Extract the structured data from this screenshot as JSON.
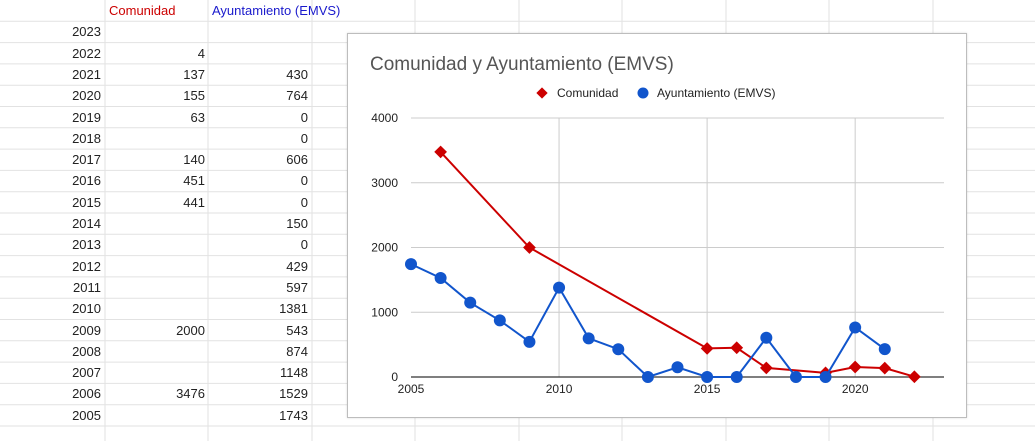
{
  "sheet": {
    "header_a": "Comunidad",
    "header_b": "Ayuntamiento (EMVS)",
    "colors": {
      "header_a": "#cc0000",
      "header_b": "#1a1acc"
    },
    "rows": [
      {
        "year": "2023",
        "a": "",
        "b": ""
      },
      {
        "year": "2022",
        "a": "4",
        "b": ""
      },
      {
        "year": "2021",
        "a": "137",
        "b": "430"
      },
      {
        "year": "2020",
        "a": "155",
        "b": "764"
      },
      {
        "year": "2019",
        "a": "63",
        "b": "0"
      },
      {
        "year": "2018",
        "a": "",
        "b": "0"
      },
      {
        "year": "2017",
        "a": "140",
        "b": "606"
      },
      {
        "year": "2016",
        "a": "451",
        "b": "0"
      },
      {
        "year": "2015",
        "a": "441",
        "b": "0"
      },
      {
        "year": "2014",
        "a": "",
        "b": "150"
      },
      {
        "year": "2013",
        "a": "",
        "b": "0"
      },
      {
        "year": "2012",
        "a": "",
        "b": "429"
      },
      {
        "year": "2011",
        "a": "",
        "b": "597"
      },
      {
        "year": "2010",
        "a": "",
        "b": "1381"
      },
      {
        "year": "2009",
        "a": "2000",
        "b": "543"
      },
      {
        "year": "2008",
        "a": "",
        "b": "874"
      },
      {
        "year": "2007",
        "a": "",
        "b": "1148"
      },
      {
        "year": "2006",
        "a": "3476",
        "b": "1529"
      },
      {
        "year": "2005",
        "a": "",
        "b": "1743"
      }
    ]
  },
  "chart_data": {
    "type": "line",
    "title": "Comunidad y Ayuntamiento (EMVS)",
    "xlabel": "",
    "ylabel": "",
    "xlim": [
      2005,
      2023
    ],
    "ylim": [
      0,
      4000
    ],
    "x_ticks": [
      "2005",
      "2010",
      "2015",
      "2020"
    ],
    "y_ticks": [
      "0",
      "1000",
      "2000",
      "3000",
      "4000"
    ],
    "grid": true,
    "legend_position": "top",
    "series": [
      {
        "name": "Comunidad",
        "color": "#cc0000",
        "marker": "diamond",
        "x": [
          2006,
          2009,
          2015,
          2016,
          2017,
          2019,
          2020,
          2021,
          2022
        ],
        "y": [
          3476,
          2000,
          441,
          451,
          140,
          63,
          155,
          137,
          4
        ]
      },
      {
        "name": "Ayuntamiento (EMVS)",
        "color": "#1155cc",
        "marker": "circle",
        "x": [
          2005,
          2006,
          2007,
          2008,
          2009,
          2010,
          2011,
          2012,
          2013,
          2014,
          2015,
          2016,
          2017,
          2018,
          2019,
          2020,
          2021
        ],
        "y": [
          1743,
          1529,
          1148,
          874,
          543,
          1381,
          597,
          429,
          0,
          150,
          0,
          0,
          606,
          0,
          0,
          764,
          430
        ]
      }
    ]
  }
}
